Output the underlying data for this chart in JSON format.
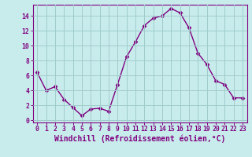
{
  "x": [
    0,
    1,
    2,
    3,
    4,
    5,
    6,
    7,
    8,
    9,
    10,
    11,
    12,
    13,
    14,
    15,
    16,
    17,
    18,
    19,
    20,
    21,
    22,
    23
  ],
  "y": [
    6.4,
    4.0,
    4.5,
    2.8,
    1.7,
    0.6,
    1.5,
    1.6,
    1.2,
    4.8,
    8.5,
    10.5,
    12.7,
    13.7,
    14.0,
    15.0,
    14.4,
    12.4,
    9.0,
    7.5,
    5.3,
    4.8,
    3.0,
    3.0
  ],
  "line_color": "#800080",
  "marker": "D",
  "marker_size": 2.5,
  "bg_color": "#c8ecec",
  "grid_color": "#a0cccc",
  "xlabel": "Windchill (Refroidissement éolien,°C)",
  "xlabel_color": "#800080",
  "ylabel_ticks": [
    0,
    2,
    4,
    6,
    8,
    10,
    12,
    14
  ],
  "xtick_labels": [
    "0",
    "1",
    "2",
    "3",
    "4",
    "5",
    "6",
    "7",
    "8",
    "9",
    "10",
    "11",
    "12",
    "13",
    "14",
    "15",
    "16",
    "17",
    "18",
    "19",
    "20",
    "21",
    "22",
    "23"
  ],
  "ylim": [
    -0.3,
    15.5
  ],
  "xlim": [
    -0.5,
    23.5
  ],
  "tick_color": "#800080",
  "tick_fontsize": 5.8,
  "xlabel_fontsize": 7.0,
  "spine_color": "#800080",
  "linewidth": 1.0
}
